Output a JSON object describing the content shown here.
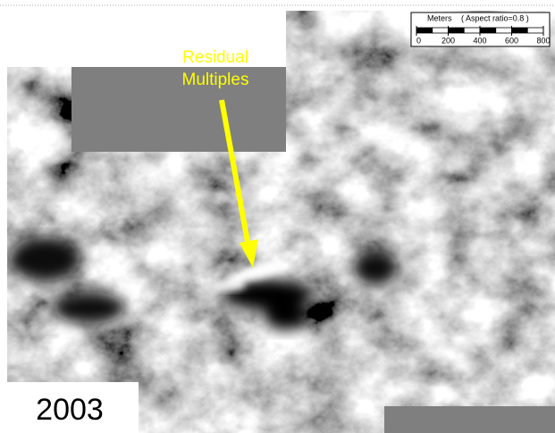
{
  "annotation": {
    "lines": [
      "Residual",
      "Multiples"
    ]
  },
  "scale_bar": {
    "unit": "Meters",
    "aspect_note": "( Aspect ratio=0.8 )",
    "ticks": [
      0,
      200,
      400,
      600,
      800
    ]
  },
  "year_label": "2003"
}
